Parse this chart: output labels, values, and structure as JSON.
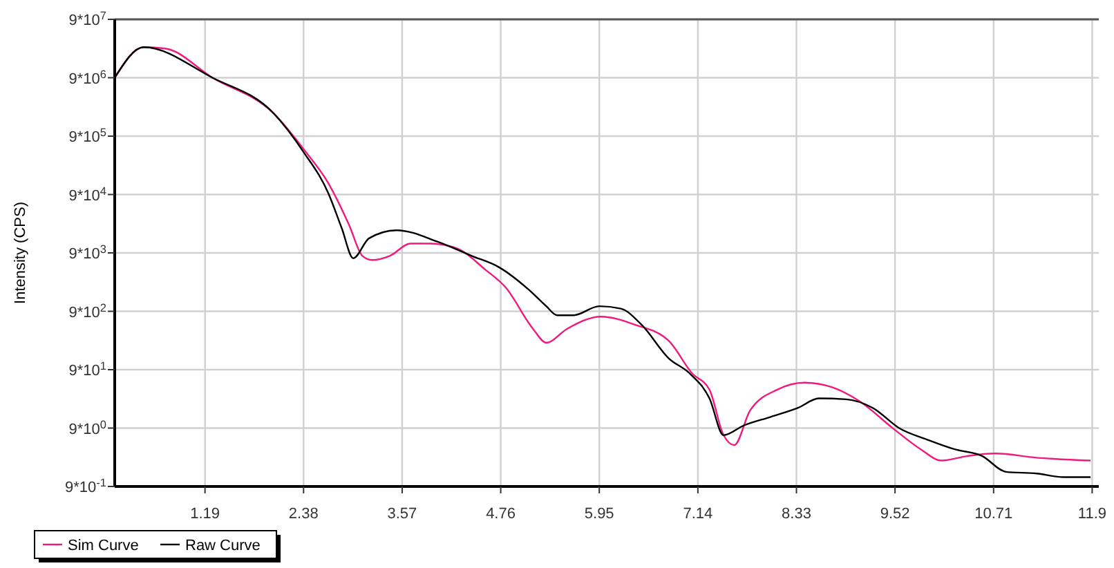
{
  "chart_data": {
    "type": "line",
    "ylabel": "Intensity (CPS)",
    "log": "y",
    "grid": true,
    "legend": "bottom left",
    "line_style": "solid",
    "marker": "none",
    "xlim": [
      0.1,
      11.98
    ],
    "xticks": [
      1.19,
      2.38,
      3.57,
      4.76,
      5.95,
      7.14,
      8.33,
      9.52,
      10.71,
      11.9
    ],
    "ylim": [
      0.9,
      90000000
    ],
    "yticks": [
      {
        "value": 0.9,
        "label": "9*10$^{-1}$"
      },
      {
        "value": 9,
        "label": "9*10$^{0}$"
      },
      {
        "value": 90,
        "label": "9*10$^{1}$"
      },
      {
        "value": 900,
        "label": "9*10$^{2}$"
      },
      {
        "value": 9000,
        "label": "9*10$^{3}$"
      },
      {
        "value": 90000,
        "label": "9*10$^{4}$"
      },
      {
        "value": 900000,
        "label": "9*10$^{5}$"
      },
      {
        "value": 9000000,
        "label": "9*10$^{6}$"
      },
      {
        "value": 90000000,
        "label": "9*10$^{7}$"
      }
    ],
    "series": [
      {
        "name": "Sim Curve",
        "color": "#f0197d",
        "x": [
          0.1,
          0.45,
          0.71,
          1.28,
          2.02,
          2.38,
          2.68,
          2.93,
          3.09,
          3.21,
          3.42,
          3.67,
          3.91,
          4.24,
          4.57,
          4.82,
          5.15,
          5.31,
          5.56,
          5.97,
          6.38,
          6.79,
          7.07,
          7.28,
          7.45,
          7.58,
          7.77,
          8.1,
          8.43,
          8.76,
          9.09,
          9.5,
          9.83,
          10.08,
          10.4,
          10.73,
          11.23,
          11.88
        ],
        "values": [
          9000000,
          30000000,
          28500000,
          9000000,
          2200000,
          540000,
          140000,
          27000,
          8000,
          6800,
          8000,
          13000,
          13000,
          10600,
          4700,
          2300,
          450,
          260,
          450,
          730,
          530,
          280,
          78,
          41,
          6.8,
          4.6,
          18,
          41,
          54,
          45,
          26,
          8.8,
          3.9,
          2.5,
          3.0,
          3.3,
          2.8,
          2.5
        ]
      },
      {
        "name": "Raw Curve",
        "color": "#000000",
        "x": [
          0.1,
          0.45,
          1.28,
          2.02,
          2.38,
          2.68,
          2.84,
          2.98,
          3.17,
          3.5,
          4.0,
          4.41,
          4.73,
          5.1,
          5.31,
          5.44,
          5.64,
          5.95,
          6.21,
          6.46,
          6.79,
          7.04,
          7.28,
          7.45,
          7.69,
          8.02,
          8.35,
          8.6,
          8.93,
          9.25,
          9.58,
          9.91,
          10.24,
          10.57,
          10.86,
          11.23,
          11.55,
          11.88
        ],
        "values": [
          9000000,
          30000000,
          9000000,
          2200000,
          480000,
          94000,
          24000,
          7300,
          16000,
          22000,
          14000,
          8000,
          5200,
          2100,
          1100,
          770,
          770,
          1100,
          1000,
          530,
          140,
          78,
          29,
          6.8,
          9.9,
          14,
          20,
          29,
          28,
          20,
          8.8,
          5.7,
          3.9,
          3.0,
          1.6,
          1.5,
          1.3,
          1.3
        ]
      }
    ]
  }
}
